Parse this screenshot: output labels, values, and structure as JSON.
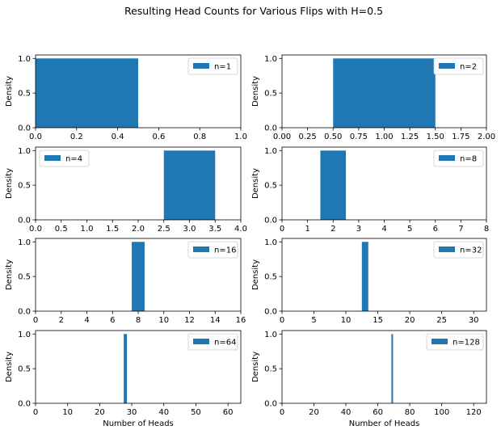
{
  "figure_title": "Resulting Head Counts for Various Flips with H=0.5",
  "bar_color": "#1f77b4",
  "chart_data": [
    {
      "type": "bar",
      "legend": "n=1",
      "legend_loc": "upper-right",
      "xlim": [
        0,
        1
      ],
      "ylim": [
        0,
        1.05
      ],
      "xticks": [
        "0.0",
        "0.2",
        "0.4",
        "0.6",
        "0.8",
        "1.0"
      ],
      "xtick_values": [
        0,
        0.2,
        0.4,
        0.6,
        0.8,
        1.0
      ],
      "yticks": [
        "0.0",
        "0.5",
        "1.0"
      ],
      "ytick_values": [
        0,
        0.5,
        1.0
      ],
      "bars": [
        {
          "x0": 0,
          "x1": 0.5,
          "value": 1.0
        }
      ],
      "ylabel": "Density",
      "xlabel": ""
    },
    {
      "type": "bar",
      "legend": "n=2",
      "legend_loc": "upper-right",
      "xlim": [
        0,
        2
      ],
      "ylim": [
        0,
        1.05
      ],
      "xticks": [
        "0.00",
        "0.25",
        "0.50",
        "0.75",
        "1.00",
        "1.25",
        "1.50",
        "1.75",
        "2.00"
      ],
      "xtick_values": [
        0,
        0.25,
        0.5,
        0.75,
        1.0,
        1.25,
        1.5,
        1.75,
        2.0
      ],
      "yticks": [
        "0.0",
        "0.5",
        "1.0"
      ],
      "ytick_values": [
        0,
        0.5,
        1.0
      ],
      "bars": [
        {
          "x0": 0.5,
          "x1": 1.5,
          "value": 1.0
        }
      ],
      "ylabel": "Density",
      "xlabel": ""
    },
    {
      "type": "bar",
      "legend": "n=4",
      "legend_loc": "upper-left",
      "xlim": [
        0,
        4
      ],
      "ylim": [
        0,
        1.05
      ],
      "xticks": [
        "0.0",
        "0.5",
        "1.0",
        "1.5",
        "2.0",
        "2.5",
        "3.0",
        "3.5",
        "4.0"
      ],
      "xtick_values": [
        0,
        0.5,
        1.0,
        1.5,
        2.0,
        2.5,
        3.0,
        3.5,
        4.0
      ],
      "yticks": [
        "0.0",
        "0.5",
        "1.0"
      ],
      "ytick_values": [
        0,
        0.5,
        1.0
      ],
      "bars": [
        {
          "x0": 2.5,
          "x1": 3.5,
          "value": 1.0
        }
      ],
      "ylabel": "Density",
      "xlabel": ""
    },
    {
      "type": "bar",
      "legend": "n=8",
      "legend_loc": "upper-right",
      "xlim": [
        0,
        8
      ],
      "ylim": [
        0,
        1.05
      ],
      "xticks": [
        "0",
        "1",
        "2",
        "3",
        "4",
        "5",
        "6",
        "7",
        "8"
      ],
      "xtick_values": [
        0,
        1,
        2,
        3,
        4,
        5,
        6,
        7,
        8
      ],
      "yticks": [
        "0.0",
        "0.5",
        "1.0"
      ],
      "ytick_values": [
        0,
        0.5,
        1.0
      ],
      "bars": [
        {
          "x0": 1.5,
          "x1": 2.5,
          "value": 1.0
        }
      ],
      "ylabel": "Density",
      "xlabel": ""
    },
    {
      "type": "bar",
      "legend": "n=16",
      "legend_loc": "upper-right",
      "xlim": [
        0,
        16
      ],
      "ylim": [
        0,
        1.05
      ],
      "xticks": [
        "0",
        "2",
        "4",
        "6",
        "8",
        "10",
        "12",
        "14",
        "16"
      ],
      "xtick_values": [
        0,
        2,
        4,
        6,
        8,
        10,
        12,
        14,
        16
      ],
      "yticks": [
        "0.0",
        "0.5",
        "1.0"
      ],
      "ytick_values": [
        0,
        0.5,
        1.0
      ],
      "bars": [
        {
          "x0": 7.5,
          "x1": 8.5,
          "value": 1.0
        }
      ],
      "ylabel": "Density",
      "xlabel": ""
    },
    {
      "type": "bar",
      "legend": "n=32",
      "legend_loc": "upper-right",
      "xlim": [
        0,
        32
      ],
      "ylim": [
        0,
        1.05
      ],
      "xticks": [
        "0",
        "5",
        "10",
        "15",
        "20",
        "25",
        "30"
      ],
      "xtick_values": [
        0,
        5,
        10,
        15,
        20,
        25,
        30
      ],
      "yticks": [
        "0.0",
        "0.5",
        "1.0"
      ],
      "ytick_values": [
        0,
        0.5,
        1.0
      ],
      "bars": [
        {
          "x0": 12.5,
          "x1": 13.5,
          "value": 1.0
        }
      ],
      "ylabel": "Density",
      "xlabel": ""
    },
    {
      "type": "bar",
      "legend": "n=64",
      "legend_loc": "upper-right",
      "xlim": [
        0,
        64
      ],
      "ylim": [
        0,
        1.05
      ],
      "xticks": [
        "0",
        "10",
        "20",
        "30",
        "40",
        "50",
        "60"
      ],
      "xtick_values": [
        0,
        10,
        20,
        30,
        40,
        50,
        60
      ],
      "yticks": [
        "0.0",
        "0.5",
        "1.0"
      ],
      "ytick_values": [
        0,
        0.5,
        1.0
      ],
      "bars": [
        {
          "x0": 27.5,
          "x1": 28.5,
          "value": 1.0
        }
      ],
      "ylabel": "Density",
      "xlabel": "Number of Heads"
    },
    {
      "type": "bar",
      "legend": "n=128",
      "legend_loc": "upper-right",
      "xlim": [
        0,
        128
      ],
      "ylim": [
        0,
        1.05
      ],
      "xticks": [
        "0",
        "20",
        "40",
        "60",
        "80",
        "100",
        "120"
      ],
      "xtick_values": [
        0,
        20,
        40,
        60,
        80,
        100,
        120
      ],
      "yticks": [
        "0.0",
        "0.5",
        "1.0"
      ],
      "ytick_values": [
        0,
        0.5,
        1.0
      ],
      "bars": [
        {
          "x0": 68.5,
          "x1": 69.5,
          "value": 1.0
        }
      ],
      "ylabel": "Density",
      "xlabel": "Number of Heads"
    }
  ]
}
